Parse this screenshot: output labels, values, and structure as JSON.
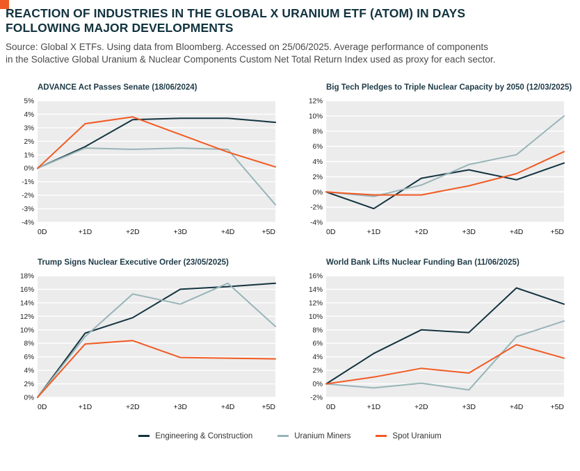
{
  "accent": {
    "orange": "#f15a22",
    "navy": "#12333f",
    "gray_line": "#98b4b8",
    "plot_bg": "#ececec",
    "grid_line": "#ffffff"
  },
  "header": {
    "title_line1": "REACTION OF INDUSTRIES IN THE GLOBAL X URANIUM ETF (ATOM) IN DAYS",
    "title_line2": "FOLLOWING MAJOR DEVELOPMENTS",
    "source_line1": "Source: Global X ETFs. Using data from Bloomberg. Accessed on 25/06/2025. Average performance of components",
    "source_line2": "in the Solactive Global Uranium & Nuclear Components Custom Net Total Return Index used as proxy for each sector."
  },
  "legend": [
    {
      "label": "Engineering & Construction",
      "color": "#12333f"
    },
    {
      "label": "Uranium Miners",
      "color": "#98b4b8"
    },
    {
      "label": "Spot Uranium",
      "color": "#f15a22"
    }
  ],
  "chart_data": [
    {
      "type": "line",
      "title": "ADVANCE Act Passes Senate (18/06/2024)",
      "categories": [
        "0D",
        "+1D",
        "+2D",
        "+3D",
        "+4D",
        "+5D"
      ],
      "ylim": [
        -4,
        5
      ],
      "ytick_step": 1,
      "grid": true,
      "series": [
        {
          "name": "Engineering & Construction",
          "values": [
            0,
            1.6,
            3.6,
            3.7,
            3.7,
            3.4
          ]
        },
        {
          "name": "Uranium Miners",
          "values": [
            0,
            1.5,
            1.4,
            1.5,
            1.4,
            -2.7
          ]
        },
        {
          "name": "Spot Uranium",
          "values": [
            0,
            3.3,
            3.8,
            2.5,
            1.2,
            0.1
          ]
        }
      ]
    },
    {
      "type": "line",
      "title": "Big Tech Pledges to Triple Nuclear Capacity by 2050 (12/03/2025)",
      "categories": [
        "0D",
        "+1D",
        "+2D",
        "+3D",
        "+4D",
        "+5D"
      ],
      "ylim": [
        -4,
        12
      ],
      "ytick_step": 2,
      "grid": true,
      "series": [
        {
          "name": "Engineering & Construction",
          "values": [
            0,
            -2.2,
            1.8,
            2.9,
            1.6,
            3.8
          ]
        },
        {
          "name": "Uranium Miners",
          "values": [
            0,
            -0.6,
            0.9,
            3.6,
            4.9,
            10.0
          ]
        },
        {
          "name": "Spot Uranium",
          "values": [
            0,
            -0.4,
            -0.4,
            0.8,
            2.4,
            5.3
          ]
        }
      ]
    },
    {
      "type": "line",
      "title": "Trump Signs Nuclear Executive Order (23/05/2025)",
      "categories": [
        "0D",
        "+1D",
        "+2D",
        "+3D",
        "+4D",
        "+5D"
      ],
      "ylim": [
        0,
        18
      ],
      "ytick_step": 2,
      "grid": true,
      "series": [
        {
          "name": "Engineering & Construction",
          "values": [
            0,
            9.5,
            11.8,
            16.0,
            16.4,
            16.9
          ]
        },
        {
          "name": "Uranium Miners",
          "values": [
            0,
            9.0,
            15.3,
            13.8,
            16.9,
            10.5
          ]
        },
        {
          "name": "Spot Uranium",
          "values": [
            0,
            7.9,
            8.4,
            5.9,
            5.8,
            5.7
          ]
        }
      ]
    },
    {
      "type": "line",
      "title": "World Bank Lifts Nuclear Funding Ban (11/06/2025)",
      "categories": [
        "0D",
        "+1D",
        "+2D",
        "+3D",
        "+4D",
        "+5D"
      ],
      "ylim": [
        -2,
        16
      ],
      "ytick_step": 2,
      "grid": true,
      "series": [
        {
          "name": "Engineering & Construction",
          "values": [
            0,
            4.5,
            8.0,
            7.6,
            14.2,
            11.8
          ]
        },
        {
          "name": "Uranium Miners",
          "values": [
            0,
            -0.6,
            0.1,
            -0.9,
            7.0,
            9.3
          ]
        },
        {
          "name": "Spot Uranium",
          "values": [
            0,
            1.0,
            2.3,
            1.6,
            5.8,
            3.8
          ]
        }
      ]
    }
  ]
}
